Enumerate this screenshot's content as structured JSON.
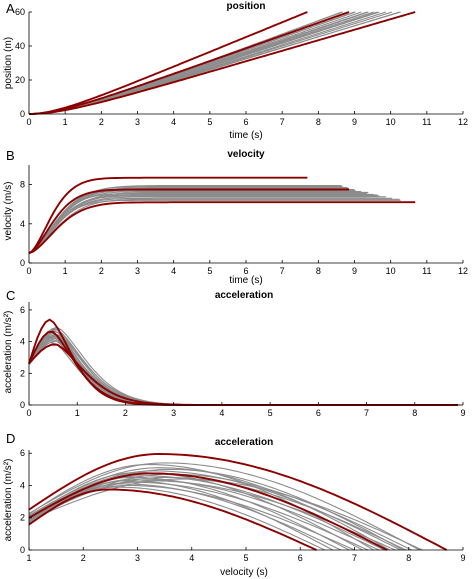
{
  "colors": {
    "gray_series": "#8c8c8c",
    "highlight_series": "#8b0000"
  },
  "chart_data": [
    {
      "panel_letter": "A",
      "type": "line",
      "title": "position",
      "xlabel": "time (s)",
      "ylabel": "position (m)",
      "xlim": [
        0,
        12
      ],
      "ylim": [
        0,
        60
      ],
      "xticks": [
        "0",
        "1",
        "2",
        "3",
        "4",
        "5",
        "6",
        "7",
        "8",
        "9",
        "10",
        "11",
        "12"
      ],
      "yticks": [
        "0",
        "20",
        "40",
        "60"
      ],
      "model": "position",
      "gray_series": [
        {
          "vmax": 7.9,
          "tau": 1.05
        },
        {
          "vmax": 7.8,
          "tau": 0.98
        },
        {
          "vmax": 7.7,
          "tau": 1.02
        },
        {
          "vmax": 7.6,
          "tau": 0.95
        },
        {
          "vmax": 7.5,
          "tau": 1.0
        },
        {
          "vmax": 7.4,
          "tau": 0.92
        },
        {
          "vmax": 7.3,
          "tau": 0.97
        },
        {
          "vmax": 7.2,
          "tau": 1.05
        },
        {
          "vmax": 7.1,
          "tau": 0.9
        },
        {
          "vmax": 7.0,
          "tau": 0.96
        },
        {
          "vmax": 6.95,
          "tau": 1.0
        },
        {
          "vmax": 6.85,
          "tau": 0.93
        },
        {
          "vmax": 6.75,
          "tau": 0.98
        },
        {
          "vmax": 6.6,
          "tau": 0.95
        },
        {
          "vmax": 6.5,
          "tau": 1.02
        },
        {
          "vmax": 6.4,
          "tau": 0.9
        }
      ],
      "highlight_series": [
        {
          "vmax": 8.7,
          "tau": 0.8
        },
        {
          "vmax": 7.5,
          "tau": 0.85
        },
        {
          "vmax": 6.2,
          "tau": 1.0
        }
      ]
    },
    {
      "panel_letter": "B",
      "type": "line",
      "title": "velocity",
      "xlabel": "time (s)",
      "ylabel": "velocity (m/s)",
      "xlim": [
        0,
        12
      ],
      "ylim": [
        0,
        10
      ],
      "xticks": [
        "0",
        "1",
        "2",
        "3",
        "4",
        "5",
        "6",
        "7",
        "8",
        "9",
        "10",
        "11",
        "12"
      ],
      "yticks": [
        "0",
        "4",
        "8"
      ],
      "model": "velocity",
      "gray_series": [
        {
          "vmax": 7.9,
          "tau": 1.05
        },
        {
          "vmax": 7.8,
          "tau": 0.98
        },
        {
          "vmax": 7.7,
          "tau": 1.02
        },
        {
          "vmax": 7.6,
          "tau": 0.95
        },
        {
          "vmax": 7.5,
          "tau": 1.0
        },
        {
          "vmax": 7.4,
          "tau": 0.92
        },
        {
          "vmax": 7.3,
          "tau": 0.97
        },
        {
          "vmax": 7.2,
          "tau": 1.05
        },
        {
          "vmax": 7.1,
          "tau": 0.9
        },
        {
          "vmax": 7.0,
          "tau": 0.96
        },
        {
          "vmax": 6.95,
          "tau": 1.0
        },
        {
          "vmax": 6.85,
          "tau": 0.93
        },
        {
          "vmax": 6.75,
          "tau": 0.98
        },
        {
          "vmax": 6.6,
          "tau": 0.95
        },
        {
          "vmax": 6.5,
          "tau": 1.02
        },
        {
          "vmax": 6.4,
          "tau": 0.9
        }
      ],
      "highlight_series": [
        {
          "vmax": 8.7,
          "tau": 0.8
        },
        {
          "vmax": 7.5,
          "tau": 0.85
        },
        {
          "vmax": 6.2,
          "tau": 1.0
        }
      ]
    },
    {
      "panel_letter": "C",
      "type": "line",
      "title": "acceleration",
      "xlabel": "",
      "ylabel": "acceleration (m/s²)",
      "xlim": [
        0,
        9
      ],
      "ylim": [
        0,
        6.5
      ],
      "xticks": [
        "0",
        "1",
        "2",
        "3",
        "4",
        "5",
        "6",
        "7",
        "8",
        "9"
      ],
      "yticks": [
        "0",
        "2",
        "4",
        "6"
      ],
      "model": "acceleration",
      "gray_series": [
        {
          "vmax": 7.9,
          "tau": 1.05
        },
        {
          "vmax": 7.8,
          "tau": 0.98
        },
        {
          "vmax": 7.7,
          "tau": 1.02
        },
        {
          "vmax": 7.6,
          "tau": 0.95
        },
        {
          "vmax": 7.5,
          "tau": 1.0
        },
        {
          "vmax": 7.4,
          "tau": 0.92
        },
        {
          "vmax": 7.3,
          "tau": 0.97
        },
        {
          "vmax": 7.2,
          "tau": 1.05
        },
        {
          "vmax": 7.1,
          "tau": 0.9
        },
        {
          "vmax": 7.0,
          "tau": 0.96
        },
        {
          "vmax": 6.95,
          "tau": 1.0
        },
        {
          "vmax": 6.85,
          "tau": 0.93
        },
        {
          "vmax": 6.75,
          "tau": 0.98
        },
        {
          "vmax": 6.6,
          "tau": 0.95
        },
        {
          "vmax": 6.5,
          "tau": 1.02
        },
        {
          "vmax": 6.4,
          "tau": 0.9
        }
      ],
      "highlight_series": [
        {
          "vmax": 8.7,
          "tau": 0.8
        },
        {
          "vmax": 7.5,
          "tau": 0.85
        },
        {
          "vmax": 6.2,
          "tau": 1.0
        }
      ]
    },
    {
      "panel_letter": "D",
      "type": "line",
      "title": "acceleration",
      "xlabel": "velocity (s)",
      "ylabel": "acceleration (m/s²)",
      "xlim": [
        1,
        9
      ],
      "ylim": [
        0,
        6.2
      ],
      "xticks": [
        "1",
        "2",
        "3",
        "4",
        "5",
        "6",
        "7",
        "8",
        "9"
      ],
      "yticks": [
        "0",
        "2",
        "4",
        "6"
      ],
      "model": "accel_vs_velocity",
      "gray_series": [
        {
          "v0": 1.0,
          "vmax": 8.05,
          "amp": 4.7,
          "peak": 3.6
        },
        {
          "v0": 1.0,
          "vmax": 7.95,
          "amp": 4.5,
          "peak": 3.5
        },
        {
          "v0": 1.0,
          "vmax": 7.85,
          "amp": 4.9,
          "peak": 3.3
        },
        {
          "v0": 1.0,
          "vmax": 7.75,
          "amp": 4.3,
          "peak": 3.2
        },
        {
          "v0": 1.0,
          "vmax": 7.65,
          "amp": 5.1,
          "peak": 3.4
        },
        {
          "v0": 1.0,
          "vmax": 7.55,
          "amp": 4.6,
          "peak": 3.1
        },
        {
          "v0": 1.0,
          "vmax": 7.45,
          "amp": 4.4,
          "peak": 3.0
        },
        {
          "v0": 1.0,
          "vmax": 7.35,
          "amp": 5.3,
          "peak": 3.2
        },
        {
          "v0": 1.0,
          "vmax": 7.25,
          "amp": 4.2,
          "peak": 2.9
        },
        {
          "v0": 1.0,
          "vmax": 7.15,
          "amp": 4.8,
          "peak": 3.0
        },
        {
          "v0": 1.0,
          "vmax": 7.0,
          "amp": 4.0,
          "peak": 2.8
        },
        {
          "v0": 1.0,
          "vmax": 6.9,
          "amp": 4.5,
          "peak": 2.9
        },
        {
          "v0": 1.0,
          "vmax": 6.75,
          "amp": 4.1,
          "peak": 2.7
        },
        {
          "v0": 1.0,
          "vmax": 6.6,
          "amp": 4.3,
          "peak": 2.8
        },
        {
          "v0": 1.0,
          "vmax": 6.45,
          "amp": 3.9,
          "peak": 2.6
        },
        {
          "v0": 1.0,
          "vmax": 8.2,
          "amp": 5.4,
          "peak": 3.5
        },
        {
          "v0": 1.0,
          "vmax": 8.25,
          "amp": 4.4,
          "peak": 3.8
        },
        {
          "v0": 1.0,
          "vmax": 7.9,
          "amp": 5.0,
          "peak": 3.6
        }
      ],
      "highlight_series": [
        {
          "v0": 1.0,
          "vmax": 8.7,
          "amp": 5.95,
          "peak": 3.4
        },
        {
          "v0": 1.0,
          "vmax": 7.6,
          "amp": 4.75,
          "peak": 3.25
        },
        {
          "v0": 1.0,
          "vmax": 6.3,
          "amp": 3.75,
          "peak": 2.45
        }
      ]
    }
  ]
}
